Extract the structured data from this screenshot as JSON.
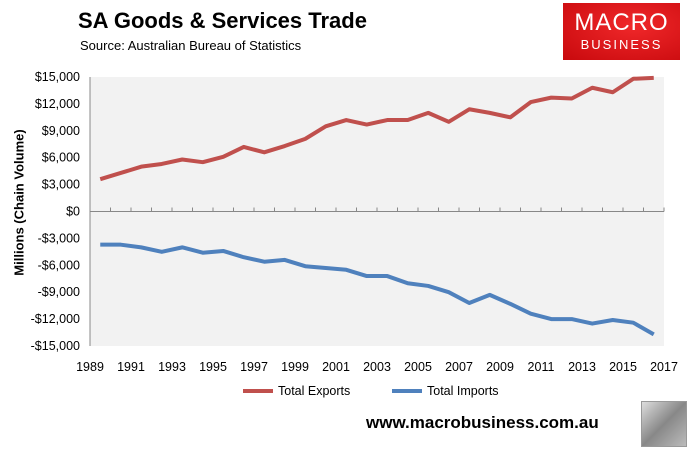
{
  "header": {
    "title": "SA Goods & Services Trade",
    "source": "Source:  Australian Bureau of Statistics"
  },
  "logo": {
    "line1": "MACRO",
    "line2": "BUSINESS"
  },
  "footer": {
    "url": "www.macrobusiness.com.au"
  },
  "chart_data": {
    "type": "line",
    "title": "SA Goods & Services Trade",
    "ylabel": "Millions (Chain Volume)",
    "xlabel": "",
    "ylim": [
      -15000,
      15000
    ],
    "yticks": [
      15000,
      12000,
      9000,
      6000,
      3000,
      0,
      -3000,
      -6000,
      -9000,
      -12000,
      -15000
    ],
    "ytick_labels": [
      "$15,000",
      "$12,000",
      "$9,000",
      "$6,000",
      "$3,000",
      "$0",
      "-$3,000",
      "-$6,000",
      "-$9,000",
      "-$12,000",
      "-$15,000"
    ],
    "xtick_labels": [
      "1989",
      "1991",
      "1993",
      "1995",
      "1997",
      "1999",
      "2001",
      "2003",
      "2005",
      "2007",
      "2009",
      "2011",
      "2013",
      "2015",
      "2017"
    ],
    "x": [
      1990,
      1991,
      1992,
      1993,
      1994,
      1995,
      1996,
      1997,
      1998,
      1999,
      2000,
      2001,
      2002,
      2003,
      2004,
      2005,
      2006,
      2007,
      2008,
      2009,
      2010,
      2011,
      2012,
      2013,
      2014,
      2015,
      2016,
      2017
    ],
    "legend": "bottom",
    "series": [
      {
        "name": "Total Exports",
        "color": "#c0504d",
        "values": [
          3600,
          4300,
          5000,
          5300,
          5800,
          5500,
          6100,
          7200,
          6600,
          7300,
          8100,
          9500,
          10200,
          9700,
          10200,
          10200,
          11000,
          10000,
          11400,
          11000,
          10500,
          12200,
          12700,
          12600,
          13800,
          13300,
          14800,
          14900
        ]
      },
      {
        "name": "Total Imports",
        "color": "#4f81bd",
        "values": [
          -3700,
          -3700,
          -4000,
          -4500,
          -4000,
          -4600,
          -4400,
          -5100,
          -5600,
          -5400,
          -6100,
          -6300,
          -6500,
          -7200,
          -7200,
          -8000,
          -8300,
          -9000,
          -10200,
          -9300,
          -10300,
          -11400,
          -12000,
          -12000,
          -12500,
          -12100,
          -12400,
          -13700
        ]
      }
    ]
  }
}
